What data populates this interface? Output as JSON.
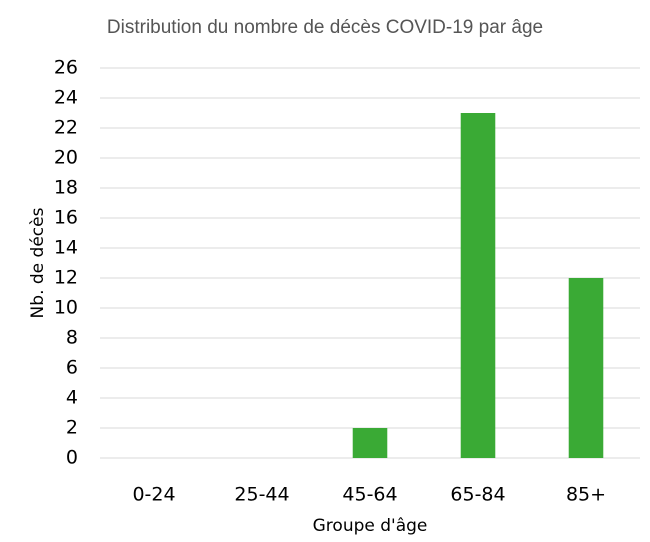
{
  "chart_data": {
    "type": "bar",
    "title": "Distribution du nombre de décès COVID-19 par âge",
    "x_label": "Groupe d'âge",
    "y_label": "Nb. de décès",
    "categories": [
      "0-24",
      "25-44",
      "45-64",
      "65-84",
      "85+"
    ],
    "values": [
      0,
      0,
      2,
      23,
      12
    ],
    "color": "#3aaa35",
    "ylim": [
      0,
      26
    ],
    "yticks": [
      0,
      2,
      4,
      6,
      8,
      10,
      12,
      14,
      16,
      18,
      20,
      22,
      24,
      26
    ],
    "grid": true
  }
}
